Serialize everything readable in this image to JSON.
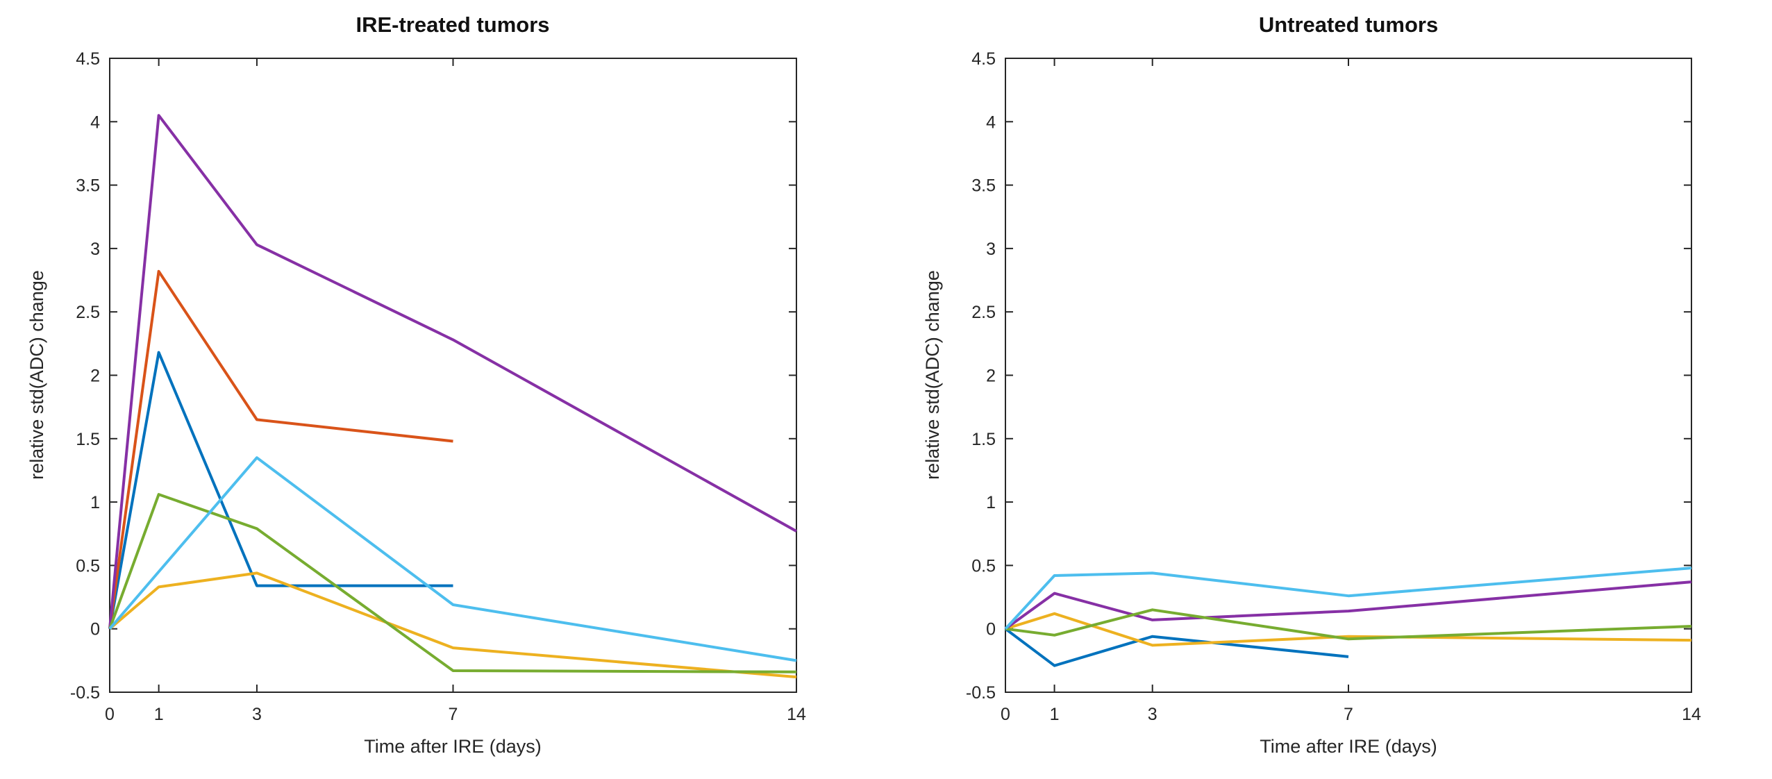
{
  "figure": {
    "background": "#ffffff",
    "axis_color": "#262626",
    "line_width": 4
  },
  "chart_data": [
    {
      "type": "line",
      "title": "IRE-treated tumors",
      "xlabel": "Time after IRE (days)",
      "ylabel": "relative std(ADC) change",
      "xlim": [
        0,
        14
      ],
      "ylim": [
        -0.5,
        4.5
      ],
      "xticks": [
        0,
        1,
        3,
        7,
        14
      ],
      "xtick_labels": [
        "0",
        "1",
        "3",
        "7",
        "14"
      ],
      "yticks": [
        -0.5,
        0,
        0.5,
        1,
        1.5,
        2,
        2.5,
        3,
        3.5,
        4,
        4.5
      ],
      "ytick_labels": [
        "-0.5",
        "0",
        "0.5",
        "1",
        "1.5",
        "2",
        "2.5",
        "3",
        "3.5",
        "4",
        "4.5"
      ],
      "grid": false,
      "legend": null,
      "series": [
        {
          "name": "blue",
          "color": "#0072BD",
          "x": [
            0,
            1,
            3,
            7
          ],
          "y": [
            0,
            2.18,
            0.34,
            0.34
          ]
        },
        {
          "name": "orange",
          "color": "#D95319",
          "x": [
            0,
            1,
            3,
            7
          ],
          "y": [
            0,
            2.82,
            1.65,
            1.48
          ]
        },
        {
          "name": "yellow",
          "color": "#EDB120",
          "x": [
            0,
            1,
            3,
            7,
            14
          ],
          "y": [
            0,
            0.33,
            0.44,
            -0.15,
            -0.38
          ]
        },
        {
          "name": "purple",
          "color": "#8630A5",
          "x": [
            0,
            1,
            3,
            7,
            14
          ],
          "y": [
            0,
            4.05,
            3.03,
            2.28,
            0.77
          ]
        },
        {
          "name": "green",
          "color": "#77AC30",
          "x": [
            0,
            1,
            3,
            7,
            14
          ],
          "y": [
            0,
            1.06,
            0.79,
            -0.33,
            -0.34
          ]
        },
        {
          "name": "cyan",
          "color": "#4DBEEE",
          "x": [
            0,
            1,
            3,
            7,
            14
          ],
          "y": [
            0,
            0.45,
            1.35,
            0.19,
            -0.25
          ]
        }
      ]
    },
    {
      "type": "line",
      "title": "Untreated tumors",
      "xlabel": "Time after IRE (days)",
      "ylabel": "relative std(ADC) change",
      "xlim": [
        0,
        14
      ],
      "ylim": [
        -0.5,
        4.5
      ],
      "xticks": [
        0,
        1,
        3,
        7,
        14
      ],
      "xtick_labels": [
        "0",
        "1",
        "3",
        "7",
        "14"
      ],
      "yticks": [
        -0.5,
        0,
        0.5,
        1,
        1.5,
        2,
        2.5,
        3,
        3.5,
        4,
        4.5
      ],
      "ytick_labels": [
        "-0.5",
        "0",
        "0.5",
        "1",
        "1.5",
        "2",
        "2.5",
        "3",
        "3.5",
        "4",
        "4.5"
      ],
      "grid": false,
      "legend": null,
      "series": [
        {
          "name": "blue",
          "color": "#0072BD",
          "x": [
            0,
            1,
            3,
            7
          ],
          "y": [
            0,
            -0.29,
            -0.06,
            -0.22
          ]
        },
        {
          "name": "yellow",
          "color": "#EDB120",
          "x": [
            0,
            1,
            3,
            7,
            14
          ],
          "y": [
            0,
            0.12,
            -0.13,
            -0.06,
            -0.09
          ]
        },
        {
          "name": "purple",
          "color": "#8630A5",
          "x": [
            0,
            1,
            3,
            7,
            14
          ],
          "y": [
            0,
            0.28,
            0.07,
            0.14,
            0.37
          ]
        },
        {
          "name": "green",
          "color": "#77AC30",
          "x": [
            0,
            1,
            3,
            7,
            14
          ],
          "y": [
            0,
            -0.05,
            0.15,
            -0.08,
            0.02
          ]
        },
        {
          "name": "cyan",
          "color": "#4DBEEE",
          "x": [
            0,
            1,
            3,
            7,
            14
          ],
          "y": [
            0,
            0.42,
            0.44,
            0.26,
            0.48
          ]
        }
      ]
    }
  ]
}
